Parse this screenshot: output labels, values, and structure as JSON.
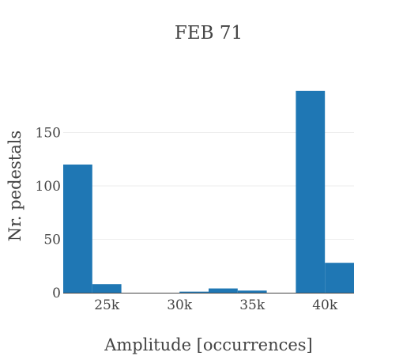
{
  "chart_data": {
    "type": "bar",
    "title": "FEB 71",
    "xlabel": "Amplitude [occurrences]",
    "ylabel": "Nr. pedestals",
    "x_ticks": [
      {
        "value": 25000,
        "label": "25k"
      },
      {
        "value": 30000,
        "label": "30k"
      },
      {
        "value": 35000,
        "label": "35k"
      },
      {
        "value": 40000,
        "label": "40k"
      }
    ],
    "y_ticks": [
      {
        "value": 0,
        "label": "0"
      },
      {
        "value": 50,
        "label": "50"
      },
      {
        "value": 100,
        "label": "100"
      },
      {
        "value": 150,
        "label": "150"
      }
    ],
    "xlim": [
      22000,
      42000
    ],
    "ylim": [
      0,
      200
    ],
    "bar_color": "#1f77b4",
    "bins": [
      {
        "x0": 22000,
        "x1": 24000,
        "value": 120
      },
      {
        "x0": 24000,
        "x1": 26000,
        "value": 8
      },
      {
        "x0": 26000,
        "x1": 28000,
        "value": 0
      },
      {
        "x0": 28000,
        "x1": 30000,
        "value": 0
      },
      {
        "x0": 30000,
        "x1": 32000,
        "value": 1
      },
      {
        "x0": 32000,
        "x1": 34000,
        "value": 4
      },
      {
        "x0": 34000,
        "x1": 36000,
        "value": 2
      },
      {
        "x0": 36000,
        "x1": 38000,
        "value": 0
      },
      {
        "x0": 38000,
        "x1": 40000,
        "value": 189
      },
      {
        "x0": 40000,
        "x1": 42000,
        "value": 28
      }
    ]
  }
}
